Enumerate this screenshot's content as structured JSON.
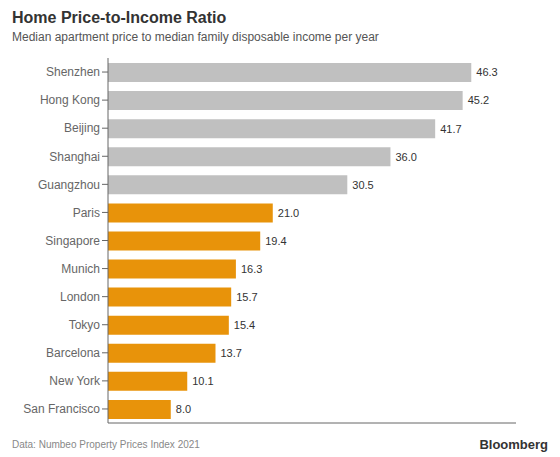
{
  "chart_data": {
    "type": "bar",
    "orientation": "horizontal",
    "title": "Home Price-to-Income Ratio",
    "subtitle": "Median apartment price to median family disposable income per year",
    "annotations": [
      "Data: Numbeo Property Prices Index 2021",
      "Bloomberg"
    ],
    "categories": [
      "Shenzhen",
      "Hong Kong",
      "Beijing",
      "Shanghai",
      "Guangzhou",
      "Paris",
      "Singapore",
      "Munich",
      "London",
      "Tokyo",
      "Barcelona",
      "New York",
      "San Francisco"
    ],
    "values": [
      46.3,
      45.2,
      41.7,
      36.0,
      30.5,
      21.0,
      19.4,
      16.3,
      15.7,
      15.4,
      13.7,
      10.1,
      8.0
    ],
    "value_labels": [
      "46.3",
      "45.2",
      "41.7",
      "36.0",
      "30.5",
      "21.0",
      "19.4",
      "16.3",
      "15.7",
      "15.4",
      "13.7",
      "10.1",
      "8.0"
    ],
    "colors": [
      "#c0c0c0",
      "#c0c0c0",
      "#c0c0c0",
      "#c0c0c0",
      "#c0c0c0",
      "#e8930a",
      "#e8930a",
      "#e8930a",
      "#e8930a",
      "#e8930a",
      "#e8930a",
      "#e8930a",
      "#e8930a"
    ],
    "xlim": [
      0,
      52
    ],
    "data_labels": true,
    "tick_labels": "y",
    "grid": false
  }
}
